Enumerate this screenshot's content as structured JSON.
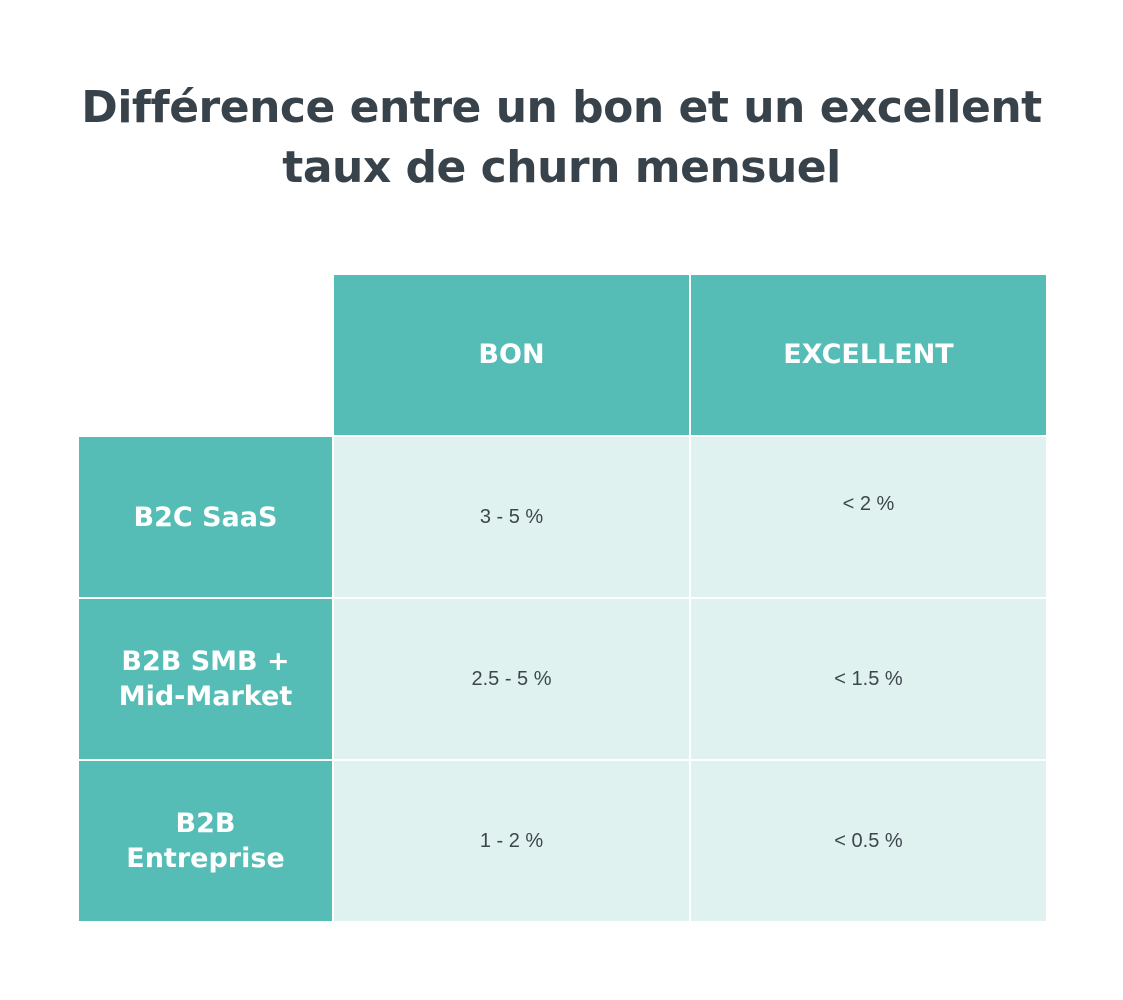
{
  "title": {
    "line1": "Différence entre un bon et un excellent",
    "line2": "taux de churn mensuel"
  },
  "colors": {
    "header_bg": "#55bdb6",
    "cell_bg": "#dff2f0",
    "title_text": "#37424a",
    "cell_text": "#3c464c"
  },
  "chart_data": {
    "type": "table",
    "title": "Différence entre un bon et un excellent taux de churn mensuel",
    "columns": [
      "BON",
      "EXCELLENT"
    ],
    "rows": [
      {
        "label": "B2C SaaS",
        "values": [
          "3 - 5 %",
          "< 2 %"
        ]
      },
      {
        "label": "B2B SMB + Mid-Market",
        "label_lines": [
          "B2B SMB +",
          "Mid-Market"
        ],
        "values": [
          "2.5 - 5 %",
          "< 1.5 %"
        ]
      },
      {
        "label": "B2B Entreprise",
        "label_lines": [
          "B2B",
          "Entreprise"
        ],
        "values": [
          "1 - 2 %",
          "< 0.5 %"
        ]
      }
    ]
  }
}
